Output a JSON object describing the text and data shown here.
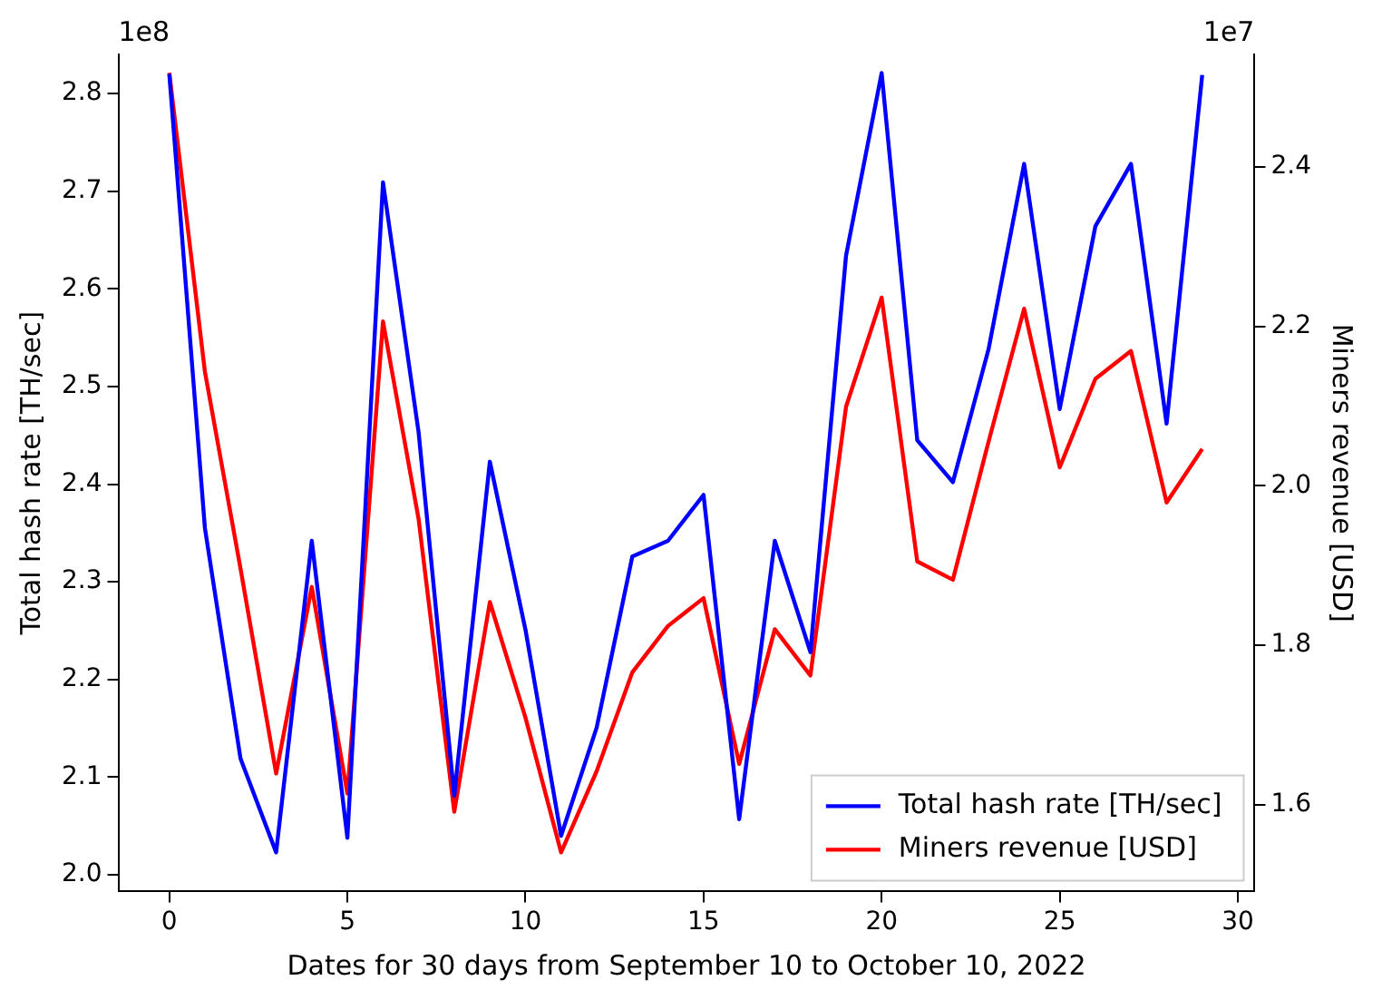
{
  "chart_data": {
    "type": "line",
    "xlabel": "Dates for 30 days from September 10 to October 10, 2022",
    "ylabel": "Total hash rate [TH/sec]",
    "y2label": "Miners revenue [USD]",
    "x": [
      0,
      1,
      2,
      3,
      4,
      5,
      6,
      7,
      8,
      9,
      10,
      11,
      12,
      13,
      14,
      15,
      16,
      17,
      18,
      19,
      20,
      21,
      22,
      23,
      24,
      25,
      26,
      27,
      28,
      29
    ],
    "series": [
      {
        "name": "Total hash rate [TH/sec]",
        "color": "#0000ff",
        "values": [
          2.82,
          2.355,
          2.119,
          2.023,
          2.342,
          2.038,
          2.709,
          2.453,
          2.081,
          2.423,
          2.251,
          2.04,
          2.151,
          2.326,
          2.342,
          2.389,
          2.057,
          2.342,
          2.228,
          2.634,
          2.821,
          2.445,
          2.402,
          2.538,
          2.728,
          2.477,
          2.664,
          2.728,
          2.462,
          2.819
        ]
      },
      {
        "name": "Miners revenue [USD]",
        "color": "#ff0000",
        "axis": "y2",
        "values": [
          2.518,
          2.143,
          1.896,
          1.639,
          1.873,
          1.614,
          2.206,
          1.958,
          1.591,
          1.854,
          1.709,
          1.54,
          1.642,
          1.766,
          1.824,
          1.859,
          1.651,
          1.82,
          1.762,
          2.099,
          2.236,
          1.905,
          1.882,
          2.055,
          2.222,
          2.023,
          2.134,
          2.169,
          1.979,
          2.046
        ]
      }
    ],
    "xlim": [
      -1.43,
      30.47
    ],
    "xticks": [
      0,
      5,
      10,
      15,
      20,
      25,
      30
    ],
    "ylim": [
      1.983,
      2.84
    ],
    "yticks": [
      {
        "value": 2,
        "label": "2.0"
      },
      2.1,
      2.2,
      2.3,
      2.4,
      2.5,
      2.6,
      2.7,
      2.8
    ],
    "y2lim": [
      1.491,
      2.541
    ],
    "y2ticks": [
      1.6,
      1.8,
      {
        "value": 2,
        "label": "2.0"
      },
      2.2,
      2.4
    ],
    "annotations": [
      "1e8",
      "1e7"
    ],
    "legend": "bottom right",
    "grid": false,
    "marker": "none",
    "line_style": "solid"
  }
}
